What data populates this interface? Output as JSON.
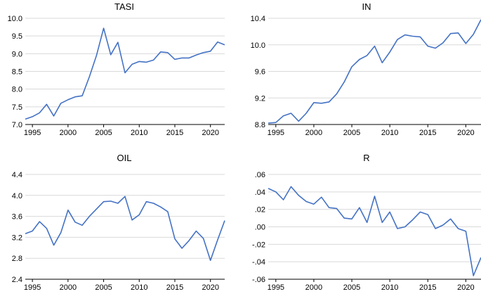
{
  "chart_data": [
    {
      "type": "line",
      "title": "TASI",
      "x": [
        1994,
        1995,
        1996,
        1997,
        1998,
        1999,
        2000,
        2001,
        2002,
        2003,
        2004,
        2005,
        2006,
        2007,
        2008,
        2009,
        2010,
        2011,
        2012,
        2013,
        2014,
        2015,
        2016,
        2017,
        2018,
        2019,
        2020,
        2021,
        2022
      ],
      "values": [
        7.15,
        7.22,
        7.33,
        7.57,
        7.24,
        7.6,
        7.7,
        7.78,
        7.81,
        8.35,
        8.95,
        9.72,
        8.97,
        9.32,
        8.46,
        8.7,
        8.78,
        8.76,
        8.82,
        9.05,
        9.03,
        8.84,
        8.88,
        8.88,
        8.96,
        9.03,
        9.07,
        9.33,
        9.25
      ],
      "xlim": [
        1994,
        2022
      ],
      "ylim": [
        7.0,
        10.0
      ],
      "yticks": [
        7.0,
        7.5,
        8.0,
        8.5,
        9.0,
        9.5,
        10.0
      ],
      "ytick_labels": [
        "7.0",
        "7.5",
        "8.0",
        "8.5",
        "9.0",
        "9.5",
        "10.0"
      ],
      "xticks": [
        1995,
        2000,
        2005,
        2010,
        2015,
        2020
      ],
      "xtick_labels": [
        "1995",
        "2000",
        "2005",
        "2010",
        "2015",
        "2020"
      ],
      "grid": true
    },
    {
      "type": "line",
      "title": "IN",
      "x": [
        1994,
        1995,
        1996,
        1997,
        1998,
        1999,
        2000,
        2001,
        2002,
        2003,
        2004,
        2005,
        2006,
        2007,
        2008,
        2009,
        2010,
        2011,
        2012,
        2013,
        2014,
        2015,
        2016,
        2017,
        2018,
        2019,
        2020,
        2021,
        2022
      ],
      "values": [
        8.82,
        8.83,
        8.93,
        8.97,
        8.85,
        8.97,
        9.13,
        9.12,
        9.14,
        9.26,
        9.44,
        9.67,
        9.78,
        9.84,
        9.98,
        9.73,
        9.89,
        10.08,
        10.15,
        10.13,
        10.12,
        9.98,
        9.95,
        10.03,
        10.17,
        10.18,
        10.02,
        10.16,
        10.38
      ],
      "xlim": [
        1994,
        2022
      ],
      "ylim": [
        8.8,
        10.4
      ],
      "yticks": [
        8.8,
        9.2,
        9.6,
        10.0,
        10.4
      ],
      "ytick_labels": [
        "8.8",
        "9.2",
        "9.6",
        "10.0",
        "10.4"
      ],
      "xticks": [
        1995,
        2000,
        2005,
        2010,
        2015,
        2020
      ],
      "xtick_labels": [
        "1995",
        "2000",
        "2005",
        "2010",
        "2015",
        "2020"
      ],
      "grid": true
    },
    {
      "type": "line",
      "title": "OIL",
      "x": [
        1994,
        1995,
        1996,
        1997,
        1998,
        1999,
        2000,
        2001,
        2002,
        2003,
        2004,
        2005,
        2006,
        2007,
        2008,
        2009,
        2010,
        2011,
        2012,
        2013,
        2014,
        2015,
        2016,
        2017,
        2018,
        2019,
        2020,
        2021,
        2022
      ],
      "values": [
        3.27,
        3.32,
        3.5,
        3.37,
        3.05,
        3.29,
        3.72,
        3.49,
        3.43,
        3.6,
        3.74,
        3.88,
        3.89,
        3.85,
        3.98,
        3.53,
        3.63,
        3.88,
        3.85,
        3.78,
        3.69,
        3.17,
        2.99,
        3.14,
        3.32,
        3.18,
        2.76,
        3.15,
        3.52
      ],
      "xlim": [
        1994,
        2022
      ],
      "ylim": [
        2.4,
        4.4
      ],
      "yticks": [
        2.4,
        2.8,
        3.2,
        3.6,
        4.0,
        4.4
      ],
      "ytick_labels": [
        "2.4",
        "2.8",
        "3.2",
        "3.6",
        "4.0",
        "4.4"
      ],
      "xticks": [
        1995,
        2000,
        2005,
        2010,
        2015,
        2020
      ],
      "xtick_labels": [
        "1995",
        "2000",
        "2005",
        "2010",
        "2015",
        "2020"
      ],
      "grid": true
    },
    {
      "type": "line",
      "title": "R",
      "x": [
        1994,
        1995,
        1996,
        1997,
        1998,
        1999,
        2000,
        2001,
        2002,
        2003,
        2004,
        2005,
        2006,
        2007,
        2008,
        2009,
        2010,
        2011,
        2012,
        2013,
        2014,
        2015,
        2016,
        2017,
        2018,
        2019,
        2020,
        2021,
        2022
      ],
      "values": [
        0.044,
        0.04,
        0.031,
        0.046,
        0.036,
        0.029,
        0.026,
        0.034,
        0.022,
        0.021,
        0.01,
        0.009,
        0.022,
        0.005,
        0.035,
        0.005,
        0.017,
        -0.002,
        0.0,
        0.008,
        0.017,
        0.014,
        -0.002,
        0.002,
        0.009,
        -0.002,
        -0.005,
        -0.056,
        -0.035
      ],
      "xlim": [
        1994,
        2022
      ],
      "ylim": [
        -0.06,
        0.06
      ],
      "yticks": [
        -0.06,
        -0.04,
        -0.02,
        0.0,
        0.02,
        0.04,
        0.06
      ],
      "ytick_labels": [
        "-.06",
        "-.04",
        "-.02",
        ".00",
        ".02",
        ".04",
        ".06"
      ],
      "xticks": [
        1995,
        2000,
        2005,
        2010,
        2015,
        2020
      ],
      "xtick_labels": [
        "1995",
        "2000",
        "2005",
        "2010",
        "2015",
        "2020"
      ],
      "grid": true
    }
  ]
}
